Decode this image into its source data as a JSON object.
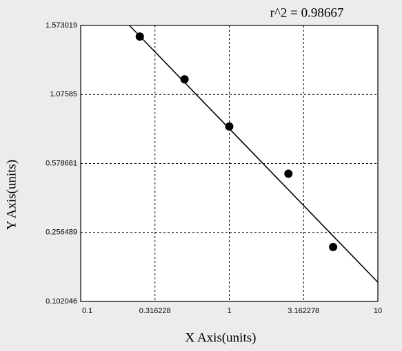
{
  "chart_data": {
    "type": "scatter",
    "annotation": "r^2  = 0.98667",
    "xlabel": "X Axis(units)",
    "ylabel": "Y Axis(units)",
    "xscale": "log",
    "grid": true,
    "xlim": [
      0.1,
      10
    ],
    "xticks": [
      0.1,
      0.316228,
      1,
      3.162278,
      10
    ],
    "ylim": [
      0.102046,
      1.573019
    ],
    "yticks": [
      0.102046,
      0.256489,
      0.578681,
      1.07585,
      1.573019
    ],
    "points": {
      "color": "#000000",
      "x": [
        0.25,
        0.5,
        1,
        2.5,
        5
      ],
      "y": [
        1.493,
        1.185,
        0.845,
        0.531,
        0.224
      ]
    },
    "fit": {
      "color": "#000000",
      "x": [
        0.213,
        10
      ],
      "y": [
        1.573019,
        0.145
      ]
    }
  }
}
